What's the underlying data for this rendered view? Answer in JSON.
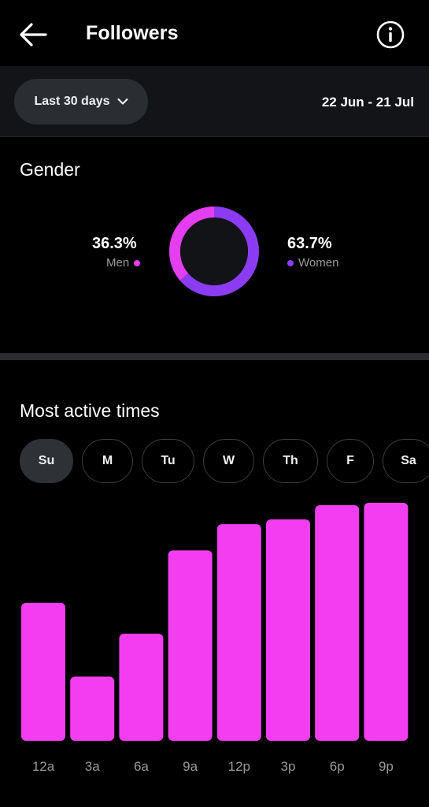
{
  "header": {
    "title": "Followers",
    "back_icon": "arrow-left-icon",
    "info_icon": "info-icon"
  },
  "datebar": {
    "range_label": "Last 30 days",
    "dropdown_icon": "chevron-down-icon",
    "date_range": "22 Jun - 21 Jul"
  },
  "gender": {
    "title": "Gender",
    "men": {
      "percent_label": "36.3%",
      "label": "Men",
      "value": 36.3,
      "color": "#e53ef0"
    },
    "women": {
      "percent_label": "63.7%",
      "label": "Women",
      "value": 63.7,
      "color": "#8b3cf2"
    }
  },
  "active_times": {
    "title": "Most active times",
    "days": [
      "Su",
      "M",
      "Tu",
      "W",
      "Th",
      "F",
      "Sa"
    ],
    "selected_day": "Su"
  },
  "chart_data": {
    "type": "bar",
    "categories": [
      "12a",
      "3a",
      "6a",
      "9a",
      "12p",
      "3p",
      "6p",
      "9p"
    ],
    "values": [
      58,
      27,
      45,
      80,
      91,
      93,
      99,
      100
    ],
    "ylim": [
      0,
      100
    ],
    "color": "#f23ef0"
  }
}
